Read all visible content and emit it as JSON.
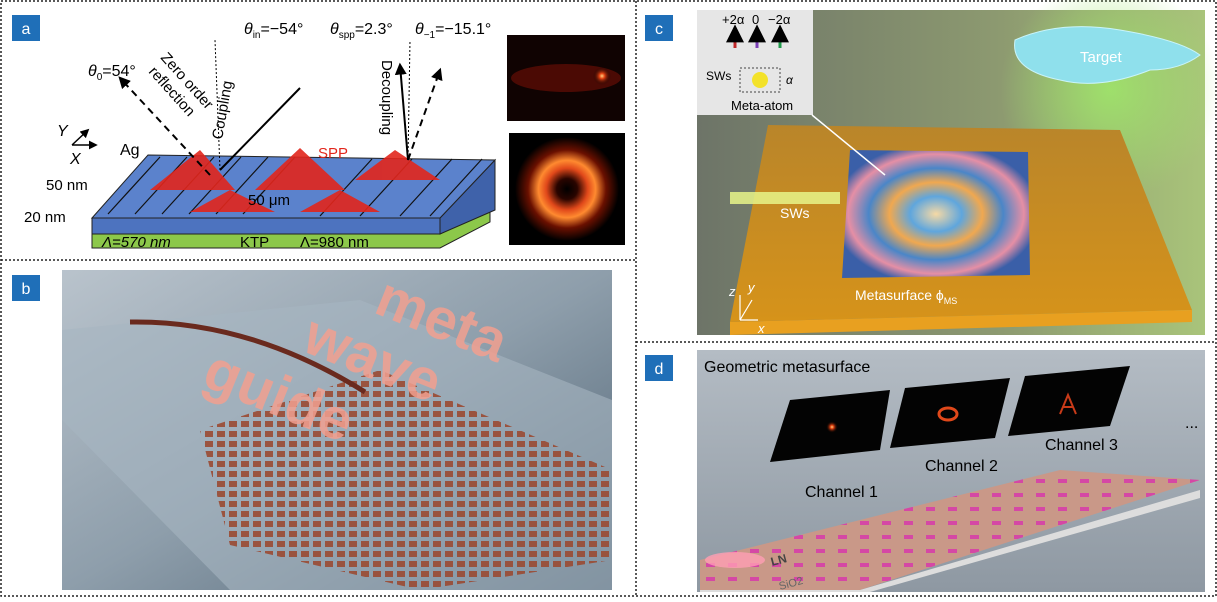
{
  "panels": {
    "a": {
      "label": "a",
      "angles": [
        {
          "base": "θ",
          "sub": "0",
          "rest": "=54°"
        },
        {
          "base": "θ",
          "sub": "in",
          "rest": "=−54°"
        },
        {
          "base": "θ",
          "sub": "spp",
          "rest": "=2.3°"
        },
        {
          "base": "θ",
          "sub": "−1",
          "rest": "=−15.1°"
        }
      ],
      "zero_order": "Zero order",
      "reflection": "reflection",
      "coupling": "Coupling",
      "decoupling": "Decoupling",
      "ag": "Ag",
      "spp": "SPP",
      "axis_y": "Y",
      "axis_x": "X",
      "thickness_top": "50 nm",
      "thickness_bottom": "20 nm",
      "spacing": "50 μm",
      "period_left": "Λ=570 nm",
      "substrate": "KTP",
      "period_right": "Λ=980 nm"
    },
    "b": {
      "label": "b",
      "words": [
        "meta",
        "wave",
        "guide"
      ]
    },
    "c": {
      "label": "c",
      "orders": [
        "+2α",
        "0",
        "−2α"
      ],
      "inset_sw": "SWs",
      "inset_angle": "α",
      "inset_caption": "Meta-atom",
      "target": "Target",
      "input": "SWs",
      "metasurface": {
        "base": "Metasurface ϕ",
        "sub": "MS"
      },
      "axes": [
        "z",
        "y",
        "x"
      ]
    },
    "d": {
      "label": "d",
      "title": "Geometric metasurface",
      "channels": [
        "Channel 1",
        "Channel 2",
        "Channel 3"
      ],
      "ellipsis": "...",
      "waveguide": "LN",
      "substrate": "SiO2"
    }
  }
}
